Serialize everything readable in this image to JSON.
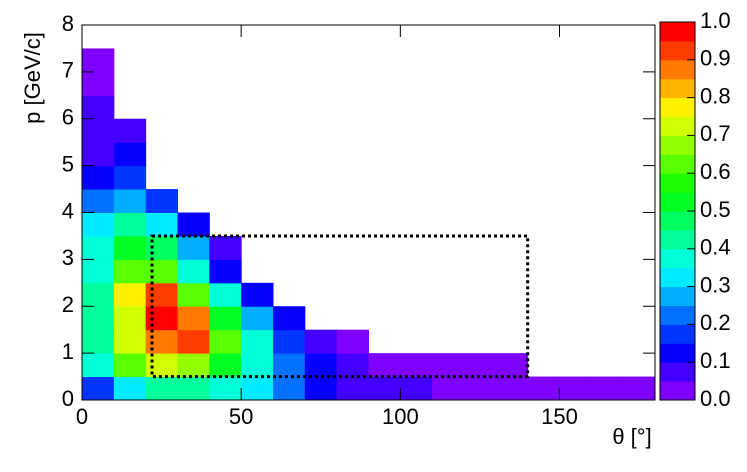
{
  "chart_data": {
    "type": "heatmap",
    "x_label": "θ [°]",
    "y_label": "p [GeV/c]",
    "xlim": [
      0,
      180
    ],
    "ylim": [
      0,
      8
    ],
    "zlim": [
      0,
      1
    ],
    "xticks": [
      0,
      50,
      100,
      150
    ],
    "yticks": [
      0,
      1,
      2,
      3,
      4,
      5,
      6,
      7,
      8
    ],
    "zticks": [
      {
        "value": 0,
        "label": "0.0"
      },
      {
        "value": 0.1,
        "label": "0.1"
      },
      {
        "value": 0.2,
        "label": "0.2"
      },
      {
        "value": 0.3,
        "label": "0.3"
      },
      {
        "value": 0.4,
        "label": "0.4"
      },
      {
        "value": 0.5,
        "label": "0.5"
      },
      {
        "value": 0.6,
        "label": "0.6"
      },
      {
        "value": 0.7,
        "label": "0.7"
      },
      {
        "value": 0.8,
        "label": "0.8"
      },
      {
        "value": 0.9,
        "label": "0.9"
      },
      {
        "value": 1,
        "label": "1.0"
      }
    ],
    "color_levels": 20,
    "xbins": [
      0,
      10,
      20,
      30,
      40,
      50,
      60,
      70,
      80,
      90,
      100,
      110,
      120,
      130,
      140,
      150,
      160,
      170,
      180
    ],
    "ybins": [
      0,
      0.5,
      1,
      1.5,
      2,
      2.5,
      3,
      3.5,
      4,
      4.5,
      5,
      5.5,
      6,
      6.5,
      7,
      7.5,
      8
    ],
    "z": [
      [
        0.15,
        0.3,
        0.4,
        0.4,
        0.35,
        0.3,
        0.2,
        0.12,
        0.08,
        0.06,
        0.05,
        0.04,
        0.03,
        0.03,
        0.02,
        0.02,
        0.02,
        0.01
      ],
      [
        0.35,
        0.6,
        0.7,
        0.65,
        0.5,
        0.35,
        0.2,
        0.1,
        0.06,
        0.04,
        0.03,
        0.02,
        0.02,
        0.01,
        null,
        null,
        null,
        null
      ],
      [
        0.4,
        0.7,
        0.85,
        0.9,
        0.6,
        0.35,
        0.18,
        0.08,
        0.04,
        null,
        null,
        null,
        null,
        null,
        null,
        null,
        null,
        null
      ],
      [
        0.4,
        0.72,
        0.95,
        0.85,
        0.5,
        0.25,
        0.1,
        null,
        null,
        null,
        null,
        null,
        null,
        null,
        null,
        null,
        null,
        null
      ],
      [
        0.4,
        0.75,
        0.9,
        0.6,
        0.35,
        0.12,
        null,
        null,
        null,
        null,
        null,
        null,
        null,
        null,
        null,
        null,
        null,
        null
      ],
      [
        0.38,
        0.6,
        0.6,
        0.35,
        0.12,
        null,
        null,
        null,
        null,
        null,
        null,
        null,
        null,
        null,
        null,
        null,
        null,
        null
      ],
      [
        0.35,
        0.5,
        0.45,
        0.25,
        0.05,
        null,
        null,
        null,
        null,
        null,
        null,
        null,
        null,
        null,
        null,
        null,
        null,
        null
      ],
      [
        0.3,
        0.4,
        0.3,
        0.12,
        null,
        null,
        null,
        null,
        null,
        null,
        null,
        null,
        null,
        null,
        null,
        null,
        null,
        null
      ],
      [
        0.2,
        0.25,
        0.15,
        null,
        null,
        null,
        null,
        null,
        null,
        null,
        null,
        null,
        null,
        null,
        null,
        null,
        null,
        null
      ],
      [
        0.12,
        0.15,
        null,
        null,
        null,
        null,
        null,
        null,
        null,
        null,
        null,
        null,
        null,
        null,
        null,
        null,
        null,
        null
      ],
      [
        0.08,
        0.1,
        null,
        null,
        null,
        null,
        null,
        null,
        null,
        null,
        null,
        null,
        null,
        null,
        null,
        null,
        null,
        null
      ],
      [
        0.06,
        0.06,
        null,
        null,
        null,
        null,
        null,
        null,
        null,
        null,
        null,
        null,
        null,
        null,
        null,
        null,
        null,
        null
      ],
      [
        0.05,
        null,
        null,
        null,
        null,
        null,
        null,
        null,
        null,
        null,
        null,
        null,
        null,
        null,
        null,
        null,
        null,
        null
      ],
      [
        0.04,
        null,
        null,
        null,
        null,
        null,
        null,
        null,
        null,
        null,
        null,
        null,
        null,
        null,
        null,
        null,
        null,
        null
      ],
      [
        0.02,
        null,
        null,
        null,
        null,
        null,
        null,
        null,
        null,
        null,
        null,
        null,
        null,
        null,
        null,
        null,
        null,
        null
      ],
      [
        null,
        null,
        null,
        null,
        null,
        null,
        null,
        null,
        null,
        null,
        null,
        null,
        null,
        null,
        null,
        null,
        null,
        null
      ]
    ],
    "box": {
      "x": [
        22,
        140
      ],
      "y": [
        0.5,
        3.5
      ]
    }
  }
}
